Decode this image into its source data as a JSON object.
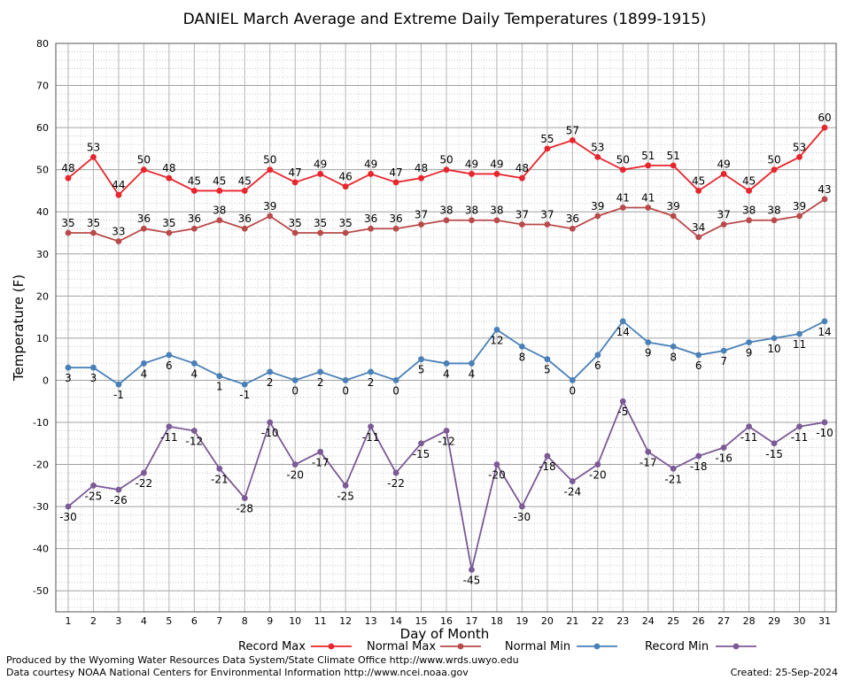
{
  "chart_data": {
    "type": "line",
    "title": "DANIEL March Average and Extreme Daily Temperatures (1899-1915)",
    "xlabel": "Day of Month",
    "ylabel": "Temperature (F)",
    "ylim": [
      -55,
      80
    ],
    "yticks": [
      -50,
      -40,
      -30,
      -20,
      -10,
      0,
      10,
      20,
      30,
      40,
      50,
      60,
      70,
      80
    ],
    "x": [
      1,
      2,
      3,
      4,
      5,
      6,
      7,
      8,
      9,
      10,
      11,
      12,
      13,
      14,
      15,
      16,
      17,
      18,
      19,
      20,
      21,
      22,
      23,
      24,
      25,
      26,
      27,
      28,
      29,
      30,
      31
    ],
    "grid": true,
    "legend_position": "bottom",
    "series": [
      {
        "name": "Record Max",
        "color": "#e8242c",
        "values": [
          48,
          53,
          44,
          50,
          48,
          45,
          45,
          45,
          50,
          47,
          49,
          46,
          49,
          47,
          48,
          50,
          49,
          49,
          48,
          55,
          57,
          53,
          50,
          51,
          51,
          45,
          49,
          45,
          50,
          53,
          60
        ]
      },
      {
        "name": "Normal Max",
        "color": "#b84a4a",
        "values": [
          35,
          35,
          33,
          36,
          35,
          36,
          38,
          36,
          39,
          35,
          35,
          35,
          36,
          36,
          37,
          38,
          38,
          38,
          37,
          37,
          36,
          39,
          41,
          41,
          39,
          34,
          37,
          38,
          38,
          39,
          43
        ]
      },
      {
        "name": "Normal Min",
        "color": "#4a80b8",
        "values": [
          3,
          3,
          -1,
          4,
          6,
          4,
          1,
          -1,
          2,
          0,
          2,
          0,
          2,
          0,
          5,
          4,
          4,
          12,
          8,
          5,
          0,
          6,
          14,
          9,
          8,
          6,
          7,
          9,
          10,
          11,
          14
        ]
      },
      {
        "name": "Record Min",
        "color": "#7b5a96",
        "values": [
          -30,
          -25,
          -26,
          -22,
          -11,
          -12,
          -21,
          -28,
          -10,
          -20,
          -17,
          -25,
          -11,
          -22,
          -15,
          -12,
          -45,
          -20,
          -30,
          -18,
          -24,
          -20,
          -5,
          -17,
          -21,
          -18,
          -16,
          -11,
          -15,
          -11,
          -10
        ]
      }
    ]
  },
  "footer": {
    "produced_by": "Produced by the Wyoming Water Resources Data System/State Climate Office http://www.wrds.uwyo.edu",
    "courtesy": "Data courtesy NOAA National Centers for Environmental Information http://www.ncei.noaa.gov",
    "created": "Created: 25-Sep-2024"
  }
}
